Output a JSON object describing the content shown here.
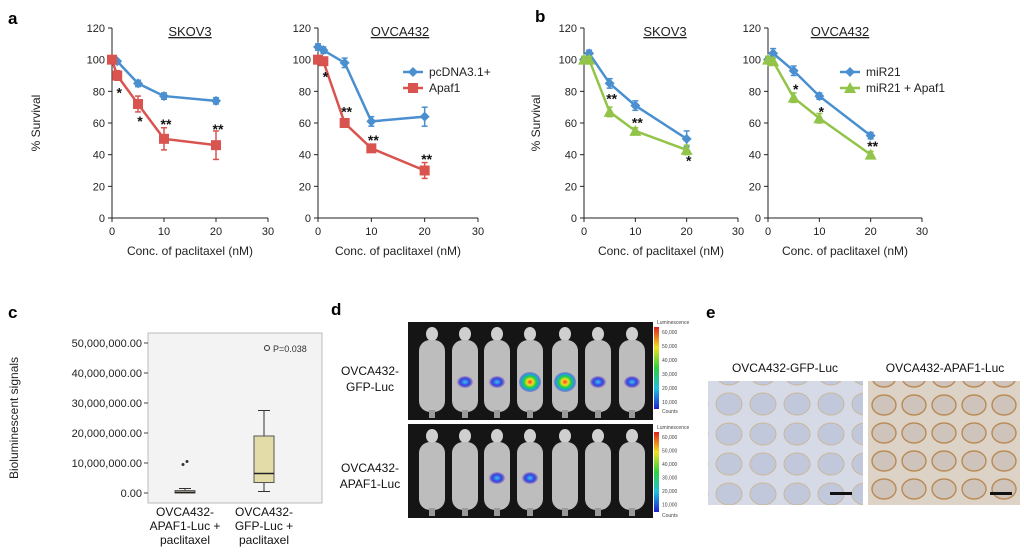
{
  "panel_labels": {
    "a": "a",
    "b": "b",
    "c": "c",
    "d": "d",
    "e": "e"
  },
  "common": {
    "xlabel": "Conc. of paclitaxel (nM)",
    "ylabel": "% Survival",
    "xticks": [
      "0",
      "10",
      "20",
      "30"
    ],
    "yticks": [
      "0",
      "20",
      "40",
      "60",
      "80",
      "100",
      "120"
    ]
  },
  "chart_data": [
    {
      "id": "a-skov3",
      "type": "line",
      "title": "SKOV3",
      "xlabel": "Conc. of paclitaxel (nM)",
      "ylabel": "% Survival",
      "xlim": [
        0,
        30
      ],
      "ylim": [
        0,
        120
      ],
      "x": [
        0,
        1,
        5,
        10,
        20
      ],
      "series": [
        {
          "name": "pcDNA3.1+",
          "color": "#4a8fd0",
          "marker": "diamond",
          "values": [
            100,
            99,
            85,
            77,
            74
          ],
          "err": [
            1,
            1,
            2,
            2,
            2
          ]
        },
        {
          "name": "Apaf1",
          "color": "#d9534f",
          "marker": "square",
          "values": [
            100,
            90,
            72,
            50,
            46
          ],
          "err": [
            1,
            3,
            5,
            7,
            9
          ]
        }
      ],
      "annotations": [
        {
          "x": 1,
          "y": 80,
          "text": "*"
        },
        {
          "x": 5,
          "y": 62,
          "text": "*"
        },
        {
          "x": 10,
          "y": 60,
          "text": "**"
        },
        {
          "x": 20,
          "y": 57,
          "text": "**"
        }
      ]
    },
    {
      "id": "a-ovca432",
      "type": "line",
      "title": "OVCA432",
      "xlabel": "Conc. of paclitaxel (nM)",
      "ylabel": "",
      "xlim": [
        0,
        30
      ],
      "ylim": [
        0,
        120
      ],
      "x": [
        0,
        1,
        5,
        10,
        20
      ],
      "series": [
        {
          "name": "pcDNA3.1+",
          "color": "#4a8fd0",
          "marker": "diamond",
          "values": [
            108,
            106,
            98,
            61,
            64
          ],
          "err": [
            2,
            2,
            3,
            3,
            6
          ]
        },
        {
          "name": "Apaf1",
          "color": "#d9534f",
          "marker": "square",
          "values": [
            100,
            99,
            60,
            44,
            30
          ],
          "err": [
            1,
            2,
            2,
            2,
            5
          ]
        }
      ],
      "legend": [
        "pcDNA3.1+",
        "Apaf1"
      ],
      "annotations": [
        {
          "x": 1,
          "y": 90,
          "text": "*"
        },
        {
          "x": 5,
          "y": 68,
          "text": "**"
        },
        {
          "x": 10,
          "y": 50,
          "text": "**"
        },
        {
          "x": 20,
          "y": 38,
          "text": "**"
        }
      ]
    },
    {
      "id": "b-skov3",
      "type": "line",
      "title": "SKOV3",
      "xlabel": "Conc. of paclitaxel (nM)",
      "ylabel": "% Survival",
      "xlim": [
        0,
        30
      ],
      "ylim": [
        0,
        120
      ],
      "x": [
        0,
        1,
        5,
        10,
        20
      ],
      "series": [
        {
          "name": "miR21",
          "color": "#4a8fd0",
          "marker": "diamond",
          "values": [
            100,
            104,
            85,
            71,
            50
          ],
          "err": [
            2,
            2,
            3,
            3,
            5
          ]
        },
        {
          "name": "miR21 + Apaf1",
          "color": "#92c44a",
          "marker": "triangle",
          "values": [
            100,
            100,
            67,
            55,
            43
          ],
          "err": [
            2,
            2,
            3,
            2,
            3
          ]
        }
      ],
      "annotations": [
        {
          "x": 5,
          "y": 76,
          "text": "**"
        },
        {
          "x": 10,
          "y": 61,
          "text": "**"
        },
        {
          "x": 20,
          "y": 37,
          "text": "*"
        }
      ]
    },
    {
      "id": "b-ovca432",
      "type": "line",
      "title": "OVCA432",
      "xlabel": "Conc. of paclitaxel (nM)",
      "ylabel": "",
      "xlim": [
        0,
        30
      ],
      "ylim": [
        0,
        120
      ],
      "x": [
        0,
        1,
        5,
        10,
        20
      ],
      "series": [
        {
          "name": "miR21",
          "color": "#4a8fd0",
          "marker": "diamond",
          "values": [
            100,
            104,
            93,
            77,
            52
          ],
          "err": [
            2,
            3,
            3,
            2,
            2
          ]
        },
        {
          "name": "miR21 + Apaf1",
          "color": "#92c44a",
          "marker": "triangle",
          "values": [
            100,
            99,
            76,
            63,
            40
          ],
          "err": [
            2,
            2,
            3,
            3,
            2
          ]
        }
      ],
      "legend": [
        "miR21",
        "miR21 + Apaf1"
      ],
      "annotations": [
        {
          "x": 5,
          "y": 82,
          "text": "*"
        },
        {
          "x": 10,
          "y": 68,
          "text": "*"
        },
        {
          "x": 20,
          "y": 46,
          "text": "**"
        }
      ]
    },
    {
      "id": "c-box",
      "type": "box",
      "ylabel": "Bioluminescent signals",
      "ylim": [
        0,
        50000000
      ],
      "yticks": [
        "0.00",
        "10,000,000.00",
        "20,000,000.00",
        "30,000,000.00",
        "40,000,000.00",
        "50,000,000.00"
      ],
      "categories": [
        "OVCA432-APAF1-Luc + paclitaxel",
        "OVCA432-GFP-Luc + paclitaxel"
      ],
      "category_lines": [
        [
          "OVCA432-",
          "APAF1-Luc +",
          "paclitaxel"
        ],
        [
          "OVCA432-",
          "GFP-Luc +",
          "paclitaxel"
        ]
      ],
      "boxes": [
        {
          "whisker_low": 0,
          "q1": 0,
          "median": 200000,
          "q3": 800000,
          "whisker_high": 1500000,
          "outliers": [
            9500000,
            10500000
          ],
          "color": "#e8e0b8"
        },
        {
          "whisker_low": 500000,
          "q1": 3500000,
          "median": 6500000,
          "q3": 19000000,
          "whisker_high": 27500000,
          "outliers": [],
          "color": "#e3dca8"
        }
      ],
      "pvalue": "P=0.038"
    }
  ],
  "panel_d": {
    "rows": [
      "OVCA432-\nGFP-Luc",
      "OVCA432-\nAPAF1-Luc"
    ],
    "row_lines": [
      [
        "OVCA432-",
        "GFP-Luc"
      ],
      [
        "OVCA432-",
        "APAF1-Luc"
      ]
    ],
    "colorbar_title": "Luminescence",
    "colorbar_ticks": [
      "60,000",
      "50,000",
      "40,000",
      "30,000",
      "20,000",
      "10,000"
    ],
    "colorbar_unit": "Counts"
  },
  "panel_e": {
    "titles": [
      "OVCA432-GFP-Luc",
      "OVCA432-APAF1-Luc"
    ]
  }
}
